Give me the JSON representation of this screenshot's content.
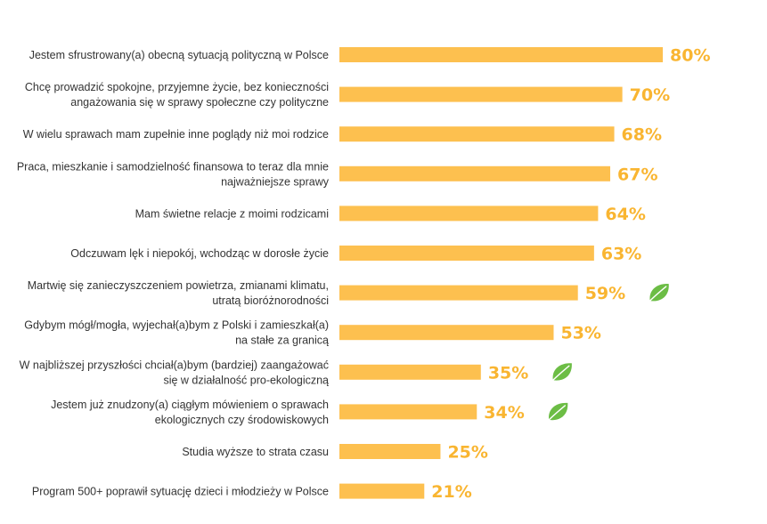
{
  "chart_data": {
    "type": "bar",
    "orientation": "horizontal",
    "title": "",
    "xlabel": "",
    "ylabel": "",
    "xlim": [
      0,
      100
    ],
    "grid": false,
    "legend": "none",
    "colors": {
      "bar": "#fdc04f",
      "value_label": "#f9b531",
      "leaf_icon": "#6cbd45"
    },
    "categories": [
      [
        "Jestem sfrustrowany(a) obecną sytuacją polityczną w Polsce"
      ],
      [
        "Chcę prowadzić spokojne, przyjemne życie, bez konieczności",
        "angażowania się w sprawy społeczne czy polityczne"
      ],
      [
        "W wielu sprawach mam zupełnie inne poglądy niż moi rodzice"
      ],
      [
        "Praca, mieszkanie i samodzielność finansowa to teraz dla mnie",
        "najważniejsze sprawy"
      ],
      [
        "Mam świetne relacje z moimi rodzicami"
      ],
      [
        "Odczuwam lęk i niepokój, wchodząc w dorosłe życie"
      ],
      [
        "Martwię się zanieczyszczeniem powietrza, zmianami klimatu,",
        "utratą bioróżnorodności"
      ],
      [
        "Gdybym mógł/mogła, wyjechał(a)bym z Polski i zamieszkał(a)",
        "na stałe za granicą"
      ],
      [
        "W najbliższej przyszłości chciał(a)bym (bardziej) zaangażować",
        "się w działalność pro-ekologiczną"
      ],
      [
        "Jestem już znudzony(a) ciągłym mówieniem o sprawach",
        "ekologicznych czy środowiskowych"
      ],
      [
        "Studia wyższe to strata czasu"
      ],
      [
        "Program 500+ poprawił sytuację dzieci i młodzieży w Polsce"
      ]
    ],
    "values": [
      80,
      70,
      68,
      67,
      64,
      63,
      59,
      53,
      35,
      34,
      25,
      21
    ],
    "value_labels": [
      "80%",
      "70%",
      "68%",
      "67%",
      "64%",
      "63%",
      "59%",
      "53%",
      "35%",
      "34%",
      "25%",
      "21%"
    ],
    "icons": [
      "",
      "",
      "",
      "",
      "",
      "",
      "leaf-icon",
      "",
      "leaf-icon",
      "leaf-icon",
      "",
      ""
    ]
  }
}
